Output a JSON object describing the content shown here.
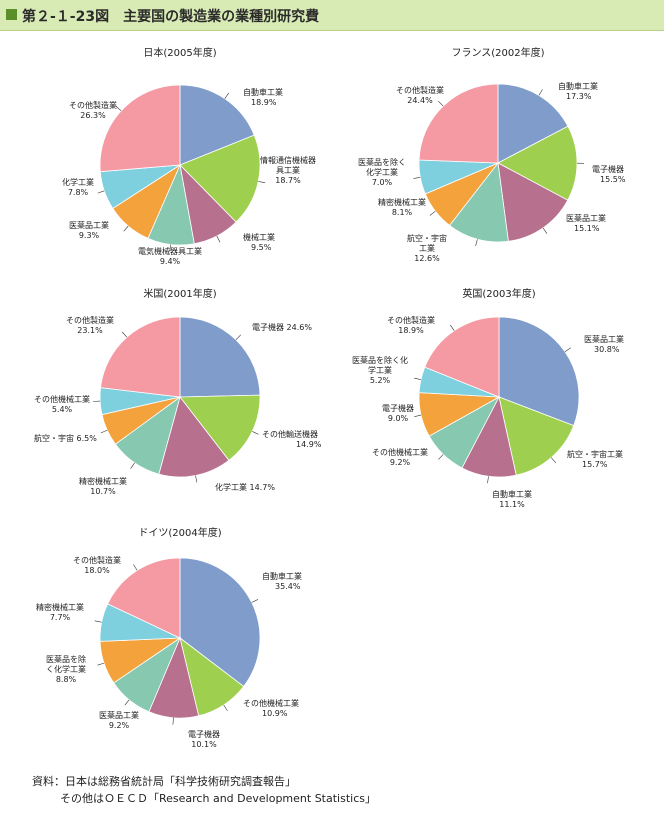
{
  "header": {
    "title": "第２-１-23図　主要国の製造業の業種別研究費"
  },
  "colors": {
    "title_bar_bg": "#d9ebb4",
    "title_marker": "#5a8f2a",
    "slice_blue": "#7f9ccb",
    "slice_green": "#9fcf4e",
    "slice_purple": "#b8708f",
    "slice_teal": "#86c8b0",
    "slice_orange": "#f4a23b",
    "slice_cyan": "#7fd0de",
    "slice_pink": "#f59aa3"
  },
  "chart_data": [
    {
      "type": "pie",
      "title": "日本(2005年度)",
      "slices": [
        {
          "label": "自動車工業",
          "value_label": "18.9%",
          "value": 18.9,
          "color": "#7f9ccb"
        },
        {
          "label": "情報通信機械器具工業",
          "value_label": "18.7%",
          "value": 18.7,
          "color": "#9fcf4e"
        },
        {
          "label": "機械工業",
          "value_label": "9.5%",
          "value": 9.5,
          "color": "#b8708f"
        },
        {
          "label": "電気機械器具工業",
          "value_label": "9.4%",
          "value": 9.4,
          "color": "#86c8b0"
        },
        {
          "label": "医薬品工業",
          "value_label": "9.3%",
          "value": 9.3,
          "color": "#f4a23b"
        },
        {
          "label": "化学工業",
          "value_label": "7.8%",
          "value": 7.8,
          "color": "#7fd0de"
        },
        {
          "label": "その他製造業",
          "value_label": "26.3%",
          "value": 26.3,
          "color": "#f59aa3"
        }
      ]
    },
    {
      "type": "pie",
      "title": "フランス(2002年度)",
      "slices": [
        {
          "label": "自動車工業",
          "value_label": "17.3%",
          "value": 17.3,
          "color": "#7f9ccb"
        },
        {
          "label": "電子機器",
          "value_label": "15.5%",
          "value": 15.5,
          "color": "#9fcf4e"
        },
        {
          "label": "医薬品工業",
          "value_label": "15.1%",
          "value": 15.1,
          "color": "#b8708f"
        },
        {
          "label": "航空・宇宙工業",
          "value_label": "12.6%",
          "value": 12.6,
          "color": "#86c8b0"
        },
        {
          "label": "精密機械工業",
          "value_label": "8.1%",
          "value": 8.1,
          "color": "#f4a23b"
        },
        {
          "label": "医薬品を除く化学工業",
          "value_label": "7.0%",
          "value": 7.0,
          "color": "#7fd0de"
        },
        {
          "label": "その他製造業",
          "value_label": "24.4%",
          "value": 24.4,
          "color": "#f59aa3"
        }
      ]
    },
    {
      "type": "pie",
      "title": "米国(2001年度)",
      "slices": [
        {
          "label": "電子機器",
          "value_label": "24.6%",
          "value": 24.6,
          "color": "#7f9ccb"
        },
        {
          "label": "その他輸送機器",
          "value_label": "14.9%",
          "value": 14.9,
          "color": "#9fcf4e"
        },
        {
          "label": "化学工業",
          "value_label": "14.7%",
          "value": 14.7,
          "color": "#b8708f"
        },
        {
          "label": "精密機械工業",
          "value_label": "10.7%",
          "value": 10.7,
          "color": "#86c8b0"
        },
        {
          "label": "航空・宇宙",
          "value_label": "6.5%",
          "value": 6.5,
          "color": "#f4a23b"
        },
        {
          "label": "その他機械工業",
          "value_label": "5.4%",
          "value": 5.4,
          "color": "#7fd0de"
        },
        {
          "label": "その他製造業",
          "value_label": "23.1%",
          "value": 23.1,
          "color": "#f59aa3"
        }
      ]
    },
    {
      "type": "pie",
      "title": "英国(2003年度)",
      "slices": [
        {
          "label": "医薬品工業",
          "value_label": "30.8%",
          "value": 30.8,
          "color": "#7f9ccb"
        },
        {
          "label": "航空・宇宙工業",
          "value_label": "15.7%",
          "value": 15.7,
          "color": "#9fcf4e"
        },
        {
          "label": "自動車工業",
          "value_label": "11.1%",
          "value": 11.1,
          "color": "#b8708f"
        },
        {
          "label": "その他機械工業",
          "value_label": "9.2%",
          "value": 9.2,
          "color": "#86c8b0"
        },
        {
          "label": "電子機器",
          "value_label": "9.0%",
          "value": 9.0,
          "color": "#f4a23b"
        },
        {
          "label": "医薬品を除く化学工業",
          "value_label": "5.2%",
          "value": 5.2,
          "color": "#7fd0de"
        },
        {
          "label": "その他製造業",
          "value_label": "18.9%",
          "value": 18.9,
          "color": "#f59aa3"
        }
      ]
    },
    {
      "type": "pie",
      "title": "ドイツ(2004年度)",
      "slices": [
        {
          "label": "自動車工業",
          "value_label": "35.4%",
          "value": 35.4,
          "color": "#7f9ccb"
        },
        {
          "label": "その他機械工業",
          "value_label": "10.9%",
          "value": 10.9,
          "color": "#9fcf4e"
        },
        {
          "label": "電子機器",
          "value_label": "10.1%",
          "value": 10.1,
          "color": "#b8708f"
        },
        {
          "label": "医薬品工業",
          "value_label": "9.2%",
          "value": 9.2,
          "color": "#86c8b0"
        },
        {
          "label": "医薬品を除く化学工業",
          "value_label": "8.8%",
          "value": 8.8,
          "color": "#f4a23b"
        },
        {
          "label": "精密機械工業",
          "value_label": "7.7%",
          "value": 7.7,
          "color": "#7fd0de"
        },
        {
          "label": "その他製造業",
          "value_label": "18.0%",
          "value": 18.0,
          "color": "#f59aa3"
        }
      ]
    }
  ],
  "source": {
    "line1": "資料：日本は総務省統計局「科学技術研究調査報告」",
    "line2": "その他はＯＥＣＤ「Research and Development Statistics」"
  }
}
